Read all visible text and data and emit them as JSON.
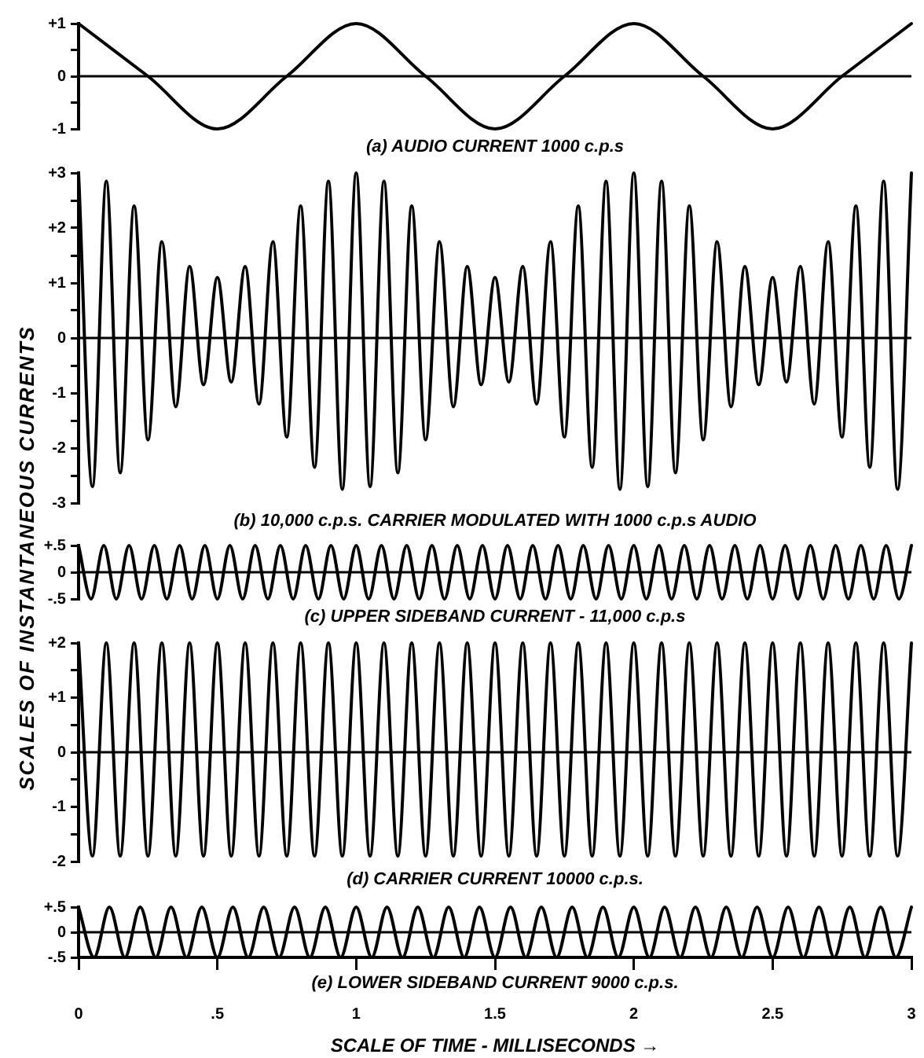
{
  "chart_data": [
    {
      "type": "line",
      "title": "(a) AUDIO CURRENT 1000 c.p.s",
      "xlim": [
        0,
        3
      ],
      "ylim": [
        -1,
        1
      ],
      "yticks": [
        {
          "value": 1,
          "label": "+1"
        },
        {
          "value": 0.5,
          "label": null
        },
        {
          "value": 0,
          "label": "0"
        },
        {
          "value": -0.5,
          "label": null
        },
        {
          "value": -1,
          "label": "-1"
        }
      ],
      "grid": false,
      "legend": false,
      "tick_labels": "y",
      "marker": "none",
      "line_style": "solid",
      "x": [
        0,
        0.25,
        0.5,
        0.75,
        1,
        1.25,
        1.5,
        1.75,
        2,
        2.25,
        2.5,
        2.75,
        3
      ],
      "series": [
        {
          "color": "#000000",
          "values": [
            1,
            0,
            -1,
            0,
            1,
            0,
            -1,
            0,
            1,
            0,
            -1,
            0,
            1
          ]
        }
      ],
      "ref_lines": [
        {
          "axis": "y",
          "value": 0,
          "color": "#000000"
        }
      ]
    },
    {
      "type": "line",
      "title": "(b) 10,000 c.p.s. CARRIER MODULATED WITH 1000 c.p.s AUDIO",
      "xlim": [
        0,
        3
      ],
      "ylim": [
        -3,
        3
      ],
      "yticks": [
        {
          "value": 3,
          "label": "+3"
        },
        {
          "value": 2.5,
          "label": null
        },
        {
          "value": 2,
          "label": "+2"
        },
        {
          "value": 1.5,
          "label": null
        },
        {
          "value": 1,
          "label": "+1"
        },
        {
          "value": 0.5,
          "label": null
        },
        {
          "value": 0,
          "label": "0"
        },
        {
          "value": -0.5,
          "label": null
        },
        {
          "value": -1,
          "label": "-1"
        },
        {
          "value": -1.5,
          "label": null
        },
        {
          "value": -2,
          "label": "-2"
        },
        {
          "value": -2.5,
          "label": null
        },
        {
          "value": -3,
          "label": "-3"
        }
      ],
      "grid": false,
      "legend": false,
      "tick_labels": "y",
      "marker": "none",
      "line_style": "solid",
      "x": [
        0,
        0.05,
        0.1,
        0.15,
        0.2,
        0.25,
        0.3,
        0.35,
        0.4,
        0.45,
        0.5,
        0.55,
        0.6,
        0.65,
        0.7,
        0.75,
        0.8,
        0.85,
        0.9,
        0.95,
        1,
        1.05,
        1.1,
        1.15,
        1.2,
        1.25,
        1.3,
        1.35,
        1.4,
        1.45,
        1.5,
        1.55,
        1.6,
        1.65,
        1.7,
        1.75,
        1.8,
        1.85,
        1.9,
        1.95,
        2,
        2.05,
        2.1,
        2.15,
        2.2,
        2.25,
        2.3,
        2.35,
        2.4,
        2.45,
        2.5,
        2.55,
        2.6,
        2.65,
        2.7,
        2.75,
        2.8,
        2.85,
        2.9,
        2.95,
        3
      ],
      "series": [
        {
          "color": "#000000",
          "values": [
            3,
            -2.7,
            2.85,
            -2.45,
            2.4,
            -1.85,
            1.75,
            -1.25,
            1.3,
            -0.85,
            1.1,
            -0.8,
            1.3,
            -1.2,
            1.75,
            -1.8,
            2.4,
            -2.35,
            2.85,
            -2.75,
            3,
            -2.7,
            2.85,
            -2.45,
            2.4,
            -1.85,
            1.75,
            -1.25,
            1.3,
            -0.85,
            1.1,
            -0.8,
            1.3,
            -1.2,
            1.75,
            -1.8,
            2.4,
            -2.35,
            2.85,
            -2.75,
            3,
            -2.7,
            2.85,
            -2.45,
            2.4,
            -1.85,
            1.75,
            -1.25,
            1.3,
            -0.85,
            1.1,
            -0.8,
            1.3,
            -1.2,
            1.75,
            -1.8,
            2.4,
            -2.35,
            2.85,
            -2.75,
            3
          ]
        }
      ],
      "ref_lines": [
        {
          "axis": "y",
          "value": 0,
          "color": "#000000"
        }
      ]
    },
    {
      "type": "line",
      "title": "(c) UPPER SIDEBAND CURRENT - 11,000 c.p.s",
      "ylabel": "SCALES OF INSTANTANEOUS CURRENTS",
      "xlim": [
        0,
        3
      ],
      "ylim": [
        -0.5,
        0.5
      ],
      "yticks": [
        {
          "value": 0.5,
          "label": "+.5"
        },
        {
          "value": 0,
          "label": "0"
        },
        {
          "value": -0.5,
          "label": "-.5"
        }
      ],
      "grid": false,
      "legend": false,
      "tick_labels": "y",
      "marker": "none",
      "line_style": "solid",
      "x": [
        0,
        0.045,
        0.091,
        0.136,
        0.182,
        0.227,
        0.273,
        0.318,
        0.364,
        0.409,
        0.455,
        0.5,
        0.545,
        0.591,
        0.636,
        0.682,
        0.727,
        0.773,
        0.818,
        0.864,
        0.909,
        0.955,
        1,
        1.045,
        1.091,
        1.136,
        1.182,
        1.227,
        1.273,
        1.318,
        1.364,
        1.409,
        1.455,
        1.5,
        1.545,
        1.591,
        1.636,
        1.682,
        1.727,
        1.773,
        1.818,
        1.864,
        1.909,
        1.955,
        2,
        2.045,
        2.091,
        2.136,
        2.182,
        2.227,
        2.273,
        2.318,
        2.364,
        2.409,
        2.455,
        2.5,
        2.545,
        2.591,
        2.636,
        2.682,
        2.727,
        2.773,
        2.818,
        2.864,
        2.909,
        2.955,
        3
      ],
      "series": [
        {
          "color": "#000000",
          "values": [
            0.5,
            -0.5,
            0.5,
            -0.5,
            0.5,
            -0.5,
            0.5,
            -0.5,
            0.5,
            -0.5,
            0.5,
            -0.5,
            0.5,
            -0.5,
            0.5,
            -0.5,
            0.5,
            -0.5,
            0.5,
            -0.5,
            0.5,
            -0.5,
            0.5,
            -0.5,
            0.5,
            -0.5,
            0.5,
            -0.5,
            0.5,
            -0.5,
            0.5,
            -0.5,
            0.5,
            -0.5,
            0.5,
            -0.5,
            0.5,
            -0.5,
            0.5,
            -0.5,
            0.5,
            -0.5,
            0.5,
            -0.5,
            0.5,
            -0.5,
            0.5,
            -0.5,
            0.5,
            -0.5,
            0.5,
            -0.5,
            0.5,
            -0.5,
            0.5,
            -0.5,
            0.5,
            -0.5,
            0.5,
            -0.5,
            0.5,
            -0.5,
            0.5,
            -0.5,
            0.5,
            -0.5,
            0.5
          ]
        }
      ],
      "ref_lines": [
        {
          "axis": "y",
          "value": 0,
          "color": "#000000"
        }
      ]
    },
    {
      "type": "line",
      "title": "(d) CARRIER CURRENT 10000 c.p.s.",
      "xlim": [
        0,
        3
      ],
      "ylim": [
        -2,
        2
      ],
      "yticks": [
        {
          "value": 2,
          "label": "+2"
        },
        {
          "value": 1.5,
          "label": null
        },
        {
          "value": 1,
          "label": "+1"
        },
        {
          "value": 0.5,
          "label": null
        },
        {
          "value": 0,
          "label": "0"
        },
        {
          "value": -0.5,
          "label": null
        },
        {
          "value": -1,
          "label": "-1"
        },
        {
          "value": -1.5,
          "label": null
        },
        {
          "value": -2,
          "label": "-2"
        }
      ],
      "grid": false,
      "legend": false,
      "tick_labels": "y",
      "marker": "none",
      "line_style": "solid",
      "x": [
        0,
        0.05,
        0.1,
        0.15,
        0.2,
        0.25,
        0.3,
        0.35,
        0.4,
        0.45,
        0.5,
        0.55,
        0.6,
        0.65,
        0.7,
        0.75,
        0.8,
        0.85,
        0.9,
        0.95,
        1,
        1.05,
        1.1,
        1.15,
        1.2,
        1.25,
        1.3,
        1.35,
        1.4,
        1.45,
        1.5,
        1.55,
        1.6,
        1.65,
        1.7,
        1.75,
        1.8,
        1.85,
        1.9,
        1.95,
        2,
        2.05,
        2.1,
        2.15,
        2.2,
        2.25,
        2.3,
        2.35,
        2.4,
        2.45,
        2.5,
        2.55,
        2.6,
        2.65,
        2.7,
        2.75,
        2.8,
        2.85,
        2.9,
        2.95,
        3
      ],
      "series": [
        {
          "color": "#000000",
          "values": [
            2,
            -1.9,
            2,
            -1.9,
            2,
            -1.9,
            2,
            -1.9,
            2,
            -1.9,
            2,
            -1.9,
            2,
            -1.9,
            2,
            -1.9,
            2,
            -1.9,
            2,
            -1.9,
            2,
            -1.9,
            2,
            -1.9,
            2,
            -1.9,
            2,
            -1.9,
            2,
            -1.9,
            2,
            -1.9,
            2,
            -1.9,
            2,
            -1.9,
            2,
            -1.9,
            2,
            -1.9,
            2,
            -1.9,
            2,
            -1.9,
            2,
            -1.9,
            2,
            -1.9,
            2,
            -1.9,
            2,
            -1.9,
            2,
            -1.9,
            2,
            -1.9,
            2,
            -1.9,
            2,
            -1.9,
            2
          ]
        }
      ],
      "ref_lines": [
        {
          "axis": "y",
          "value": 0,
          "color": "#000000"
        }
      ]
    },
    {
      "type": "line",
      "title": "(e) LOWER SIDEBAND CURRENT 9000 c.p.s.",
      "xlabel": "SCALE OF TIME - MILLISECONDS →",
      "xlim": [
        0,
        3
      ],
      "xticks": [
        0,
        {
          "value": 0.5,
          "label": ".5"
        },
        1,
        1.5,
        2,
        2.5,
        3
      ],
      "ylim": [
        -0.5,
        0.5
      ],
      "yticks": [
        {
          "value": 0.5,
          "label": "+.5"
        },
        {
          "value": 0,
          "label": "0"
        },
        {
          "value": -0.5,
          "label": "-.5"
        }
      ],
      "grid": false,
      "legend": false,
      "marker": "none",
      "line_style": "solid",
      "x": [
        0,
        0.056,
        0.111,
        0.167,
        0.222,
        0.278,
        0.333,
        0.389,
        0.444,
        0.5,
        0.556,
        0.611,
        0.667,
        0.722,
        0.778,
        0.833,
        0.889,
        0.944,
        1,
        1.056,
        1.111,
        1.167,
        1.222,
        1.278,
        1.333,
        1.389,
        1.444,
        1.5,
        1.556,
        1.611,
        1.667,
        1.722,
        1.778,
        1.833,
        1.889,
        1.944,
        2,
        2.056,
        2.111,
        2.167,
        2.222,
        2.278,
        2.333,
        2.389,
        2.444,
        2.5,
        2.556,
        2.611,
        2.667,
        2.722,
        2.778,
        2.833,
        2.889,
        2.944,
        3
      ],
      "series": [
        {
          "color": "#000000",
          "values": [
            0.5,
            -0.5,
            0.5,
            -0.5,
            0.5,
            -0.5,
            0.5,
            -0.5,
            0.5,
            -0.5,
            0.5,
            -0.5,
            0.5,
            -0.5,
            0.5,
            -0.5,
            0.5,
            -0.5,
            0.5,
            -0.5,
            0.5,
            -0.5,
            0.5,
            -0.5,
            0.5,
            -0.5,
            0.5,
            -0.5,
            0.5,
            -0.5,
            0.5,
            -0.5,
            0.5,
            -0.5,
            0.5,
            -0.5,
            0.5,
            -0.5,
            0.5,
            -0.5,
            0.5,
            -0.5,
            0.5,
            -0.5,
            0.5,
            -0.5,
            0.5,
            -0.5,
            0.5,
            -0.5,
            0.5,
            -0.5,
            0.5,
            -0.5,
            0.5
          ]
        }
      ],
      "ref_lines": [
        {
          "axis": "y",
          "value": 0,
          "color": "#000000"
        }
      ]
    }
  ]
}
